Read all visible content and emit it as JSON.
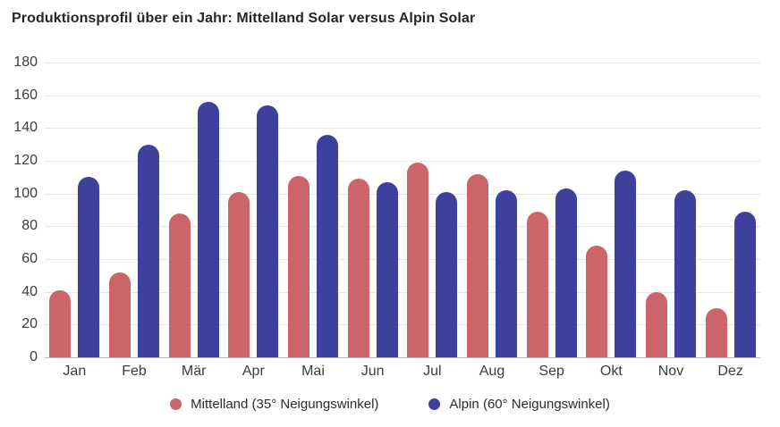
{
  "title": "Produktionsprofil über ein Jahr: Mittelland Solar versus Alpin Solar",
  "chart_data": {
    "type": "bar",
    "title": "Produktionsprofil über ein Jahr: Mittelland Solar versus Alpin Solar",
    "categories": [
      "Jan",
      "Feb",
      "Mär",
      "Apr",
      "Mai",
      "Jun",
      "Jul",
      "Aug",
      "Sep",
      "Okt",
      "Nov",
      "Dez"
    ],
    "series": [
      {
        "name": "Mittelland (35° Neigungswinkel)",
        "slug": "mittelland",
        "color": "#cd646a",
        "values": [
          41,
          52,
          88,
          101,
          111,
          109,
          119,
          112,
          89,
          68,
          40,
          30
        ]
      },
      {
        "name": "Alpin (60° Neigungswinkel)",
        "slug": "alpin",
        "color": "#3d419c",
        "values": [
          110,
          130,
          156,
          154,
          136,
          107,
          101,
          102,
          103,
          114,
          102,
          89
        ]
      }
    ],
    "xlabel": "",
    "ylabel": "",
    "ylim": [
      0,
      180
    ],
    "ytick_step": 20,
    "grid": true,
    "legend_position": "bottom"
  },
  "colors": {
    "background": "#ffffff",
    "gridline": "#e7e7e7",
    "axis_line": "#bdbdbd",
    "axis_text": "#3c3c3c",
    "title_text": "#262626"
  }
}
